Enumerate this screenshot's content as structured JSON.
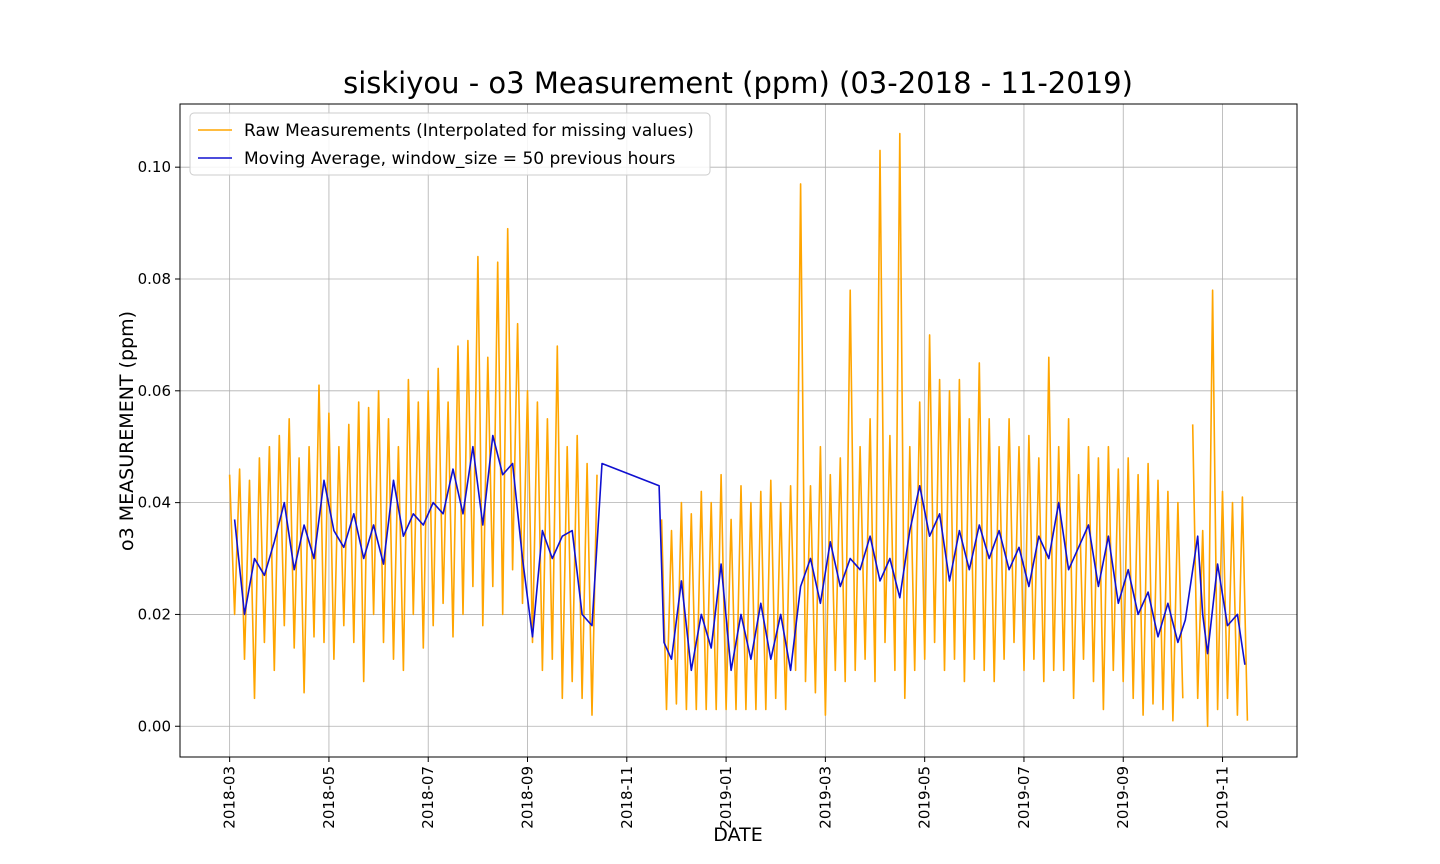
{
  "chart_data": {
    "type": "line",
    "title": "siskiyou - o3 Measurement (ppm) (03-2018 - 11-2019)",
    "xlabel": "DATE",
    "ylabel": "o3 MEASUREMENT (ppm)",
    "xlim": [
      -1.0,
      21.5
    ],
    "ylim": [
      -0.0055,
      0.1113
    ],
    "xticks": [
      {
        "value": 0,
        "label": "2018-03"
      },
      {
        "value": 2,
        "label": "2018-05"
      },
      {
        "value": 4,
        "label": "2018-07"
      },
      {
        "value": 6,
        "label": "2018-09"
      },
      {
        "value": 8,
        "label": "2018-11"
      },
      {
        "value": 10,
        "label": "2019-01"
      },
      {
        "value": 12,
        "label": "2019-03"
      },
      {
        "value": 14,
        "label": "2019-05"
      },
      {
        "value": 16,
        "label": "2019-07"
      },
      {
        "value": 18,
        "label": "2019-09"
      },
      {
        "value": 20,
        "label": "2019-11"
      }
    ],
    "yticks": [
      {
        "value": 0,
        "label": "0.00"
      },
      0.02,
      0.04,
      0.06,
      0.08,
      {
        "value": 0.1,
        "label": "0.10"
      }
    ],
    "grid": true,
    "legend": "upper left",
    "series": [
      {
        "name": "Raw Measurements (Interpolated for missing values)",
        "color": "#ffa500",
        "x": [
          0.0,
          0.1,
          0.2,
          0.3,
          0.4,
          0.5,
          0.6,
          0.7,
          0.8,
          0.9,
          1.0,
          1.1,
          1.2,
          1.3,
          1.4,
          1.5,
          1.6,
          1.7,
          1.8,
          1.9,
          2.0,
          2.1,
          2.2,
          2.3,
          2.4,
          2.5,
          2.6,
          2.7,
          2.8,
          2.9,
          3.0,
          3.1,
          3.2,
          3.3,
          3.4,
          3.5,
          3.6,
          3.7,
          3.8,
          3.9,
          4.0,
          4.1,
          4.2,
          4.3,
          4.4,
          4.5,
          4.6,
          4.7,
          4.8,
          4.9,
          5.0,
          5.1,
          5.2,
          5.3,
          5.4,
          5.5,
          5.6,
          5.7,
          5.8,
          5.9,
          6.0,
          6.1,
          6.2,
          6.3,
          6.4,
          6.5,
          6.6,
          6.7,
          6.8,
          6.9,
          7.0,
          7.1,
          7.2,
          7.3,
          7.4,
          8.0,
          8.7,
          8.8,
          8.9,
          9.0,
          9.1,
          9.2,
          9.3,
          9.4,
          9.5,
          9.6,
          9.7,
          9.8,
          9.9,
          10.0,
          10.1,
          10.2,
          10.3,
          10.4,
          10.5,
          10.6,
          10.7,
          10.8,
          10.9,
          11.0,
          11.1,
          11.2,
          11.3,
          11.4,
          11.5,
          11.6,
          11.7,
          11.8,
          11.9,
          12.0,
          12.1,
          12.2,
          12.3,
          12.4,
          12.5,
          12.6,
          12.7,
          12.8,
          12.9,
          13.0,
          13.1,
          13.2,
          13.3,
          13.4,
          13.5,
          13.6,
          13.7,
          13.8,
          13.9,
          14.0,
          14.1,
          14.2,
          14.3,
          14.4,
          14.5,
          14.6,
          14.7,
          14.8,
          14.9,
          15.0,
          15.1,
          15.2,
          15.3,
          15.4,
          15.5,
          15.6,
          15.7,
          15.8,
          15.9,
          16.0,
          16.1,
          16.2,
          16.3,
          16.4,
          16.5,
          16.6,
          16.7,
          16.8,
          16.9,
          17.0,
          17.1,
          17.2,
          17.3,
          17.4,
          17.5,
          17.6,
          17.7,
          17.8,
          17.9,
          18.0,
          18.1,
          18.2,
          18.3,
          18.4,
          18.5,
          18.6,
          18.7,
          18.8,
          18.9,
          19.0,
          19.1,
          19.2,
          19.3,
          19.4,
          19.5,
          19.6,
          19.7,
          19.8,
          19.9,
          20.0,
          20.1,
          20.2,
          20.3,
          20.4,
          20.5
        ],
        "values": [
          0.045,
          0.02,
          0.046,
          0.012,
          0.044,
          0.005,
          0.048,
          0.015,
          0.05,
          0.01,
          0.052,
          0.018,
          0.055,
          0.014,
          0.048,
          0.006,
          0.05,
          0.016,
          0.061,
          0.015,
          0.056,
          0.012,
          0.05,
          0.018,
          0.054,
          0.015,
          0.058,
          0.008,
          0.057,
          0.02,
          0.06,
          0.015,
          0.055,
          0.012,
          0.05,
          0.01,
          0.062,
          0.02,
          0.058,
          0.014,
          0.06,
          0.018,
          0.064,
          0.022,
          0.058,
          0.016,
          0.068,
          0.02,
          0.069,
          0.025,
          0.084,
          0.018,
          0.066,
          0.025,
          0.083,
          0.02,
          0.089,
          0.028,
          0.072,
          0.022,
          0.06,
          0.015,
          0.058,
          0.01,
          0.055,
          0.012,
          0.068,
          0.005,
          0.05,
          0.008,
          0.052,
          0.005,
          0.047,
          0.002,
          0.045,
          null,
          0.037,
          0.003,
          0.035,
          0.004,
          0.04,
          0.003,
          0.038,
          0.003,
          0.042,
          0.003,
          0.04,
          0.003,
          0.045,
          0.003,
          0.037,
          0.003,
          0.043,
          0.003,
          0.04,
          0.003,
          0.042,
          0.003,
          0.044,
          0.005,
          0.04,
          0.003,
          0.043,
          0.01,
          0.097,
          0.008,
          0.043,
          0.006,
          0.05,
          0.002,
          0.045,
          0.01,
          0.048,
          0.008,
          0.078,
          0.01,
          0.05,
          0.012,
          0.055,
          0.008,
          0.103,
          0.015,
          0.052,
          0.01,
          0.106,
          0.005,
          0.05,
          0.01,
          0.058,
          0.012,
          0.07,
          0.015,
          0.062,
          0.01,
          0.06,
          0.012,
          0.062,
          0.008,
          0.055,
          0.012,
          0.065,
          0.01,
          0.055,
          0.008,
          0.05,
          0.012,
          0.055,
          0.015,
          0.05,
          0.01,
          0.052,
          0.012,
          0.048,
          0.008,
          0.066,
          0.01,
          0.05,
          0.01,
          0.055,
          0.005,
          0.045,
          0.012,
          0.05,
          0.008,
          0.048,
          0.003,
          0.05,
          0.01,
          0.046,
          0.008,
          0.048,
          0.005,
          0.045,
          0.002,
          0.047,
          0.004,
          0.044,
          0.003,
          0.042,
          0.001,
          0.04,
          0.005,
          null,
          0.054,
          0.005,
          0.035,
          0.0,
          0.078,
          0.003,
          0.042,
          0.005,
          0.04,
          0.002,
          0.041,
          0.001
        ]
      },
      {
        "name": "Moving Average, window_size = 50 previous hours",
        "color": "#1010d0",
        "x": [
          0.1,
          0.3,
          0.5,
          0.7,
          0.9,
          1.1,
          1.3,
          1.5,
          1.7,
          1.9,
          2.1,
          2.3,
          2.5,
          2.7,
          2.9,
          3.1,
          3.3,
          3.5,
          3.7,
          3.9,
          4.1,
          4.3,
          4.5,
          4.7,
          4.9,
          5.1,
          5.3,
          5.5,
          5.7,
          5.9,
          6.1,
          6.3,
          6.5,
          6.7,
          6.9,
          7.1,
          7.3,
          7.5,
          8.65,
          8.75,
          8.9,
          9.1,
          9.3,
          9.5,
          9.7,
          9.9,
          10.1,
          10.3,
          10.5,
          10.7,
          10.9,
          11.1,
          11.3,
          11.5,
          11.7,
          11.9,
          12.1,
          12.3,
          12.5,
          12.7,
          12.9,
          13.1,
          13.3,
          13.5,
          13.7,
          13.9,
          14.1,
          14.3,
          14.5,
          14.7,
          14.9,
          15.1,
          15.3,
          15.5,
          15.7,
          15.9,
          16.1,
          16.3,
          16.5,
          16.7,
          16.9,
          17.1,
          17.3,
          17.5,
          17.7,
          17.9,
          18.1,
          18.3,
          18.5,
          18.7,
          18.9,
          19.1,
          19.25,
          19.5,
          19.6,
          19.7,
          19.9,
          20.1,
          20.3,
          20.45
        ],
        "values": [
          0.037,
          0.02,
          0.03,
          0.027,
          0.033,
          0.04,
          0.028,
          0.036,
          0.03,
          0.044,
          0.035,
          0.032,
          0.038,
          0.03,
          0.036,
          0.029,
          0.044,
          0.034,
          0.038,
          0.036,
          0.04,
          0.038,
          0.046,
          0.038,
          0.05,
          0.036,
          0.052,
          0.045,
          0.047,
          0.03,
          0.016,
          0.035,
          0.03,
          0.034,
          0.035,
          0.02,
          0.018,
          0.047,
          0.043,
          0.015,
          0.012,
          0.026,
          0.01,
          0.02,
          0.014,
          0.029,
          0.01,
          0.02,
          0.012,
          0.022,
          0.012,
          0.02,
          0.01,
          0.025,
          0.03,
          0.022,
          0.033,
          0.025,
          0.03,
          0.028,
          0.034,
          0.026,
          0.03,
          0.023,
          0.035,
          0.043,
          0.034,
          0.038,
          0.026,
          0.035,
          0.028,
          0.036,
          0.03,
          0.035,
          0.028,
          0.032,
          0.025,
          0.034,
          0.03,
          0.04,
          0.028,
          0.032,
          0.036,
          0.025,
          0.034,
          0.022,
          0.028,
          0.02,
          0.024,
          0.016,
          0.022,
          0.015,
          0.019,
          0.034,
          0.02,
          0.013,
          0.029,
          0.018,
          0.02,
          0.011
        ]
      }
    ]
  }
}
